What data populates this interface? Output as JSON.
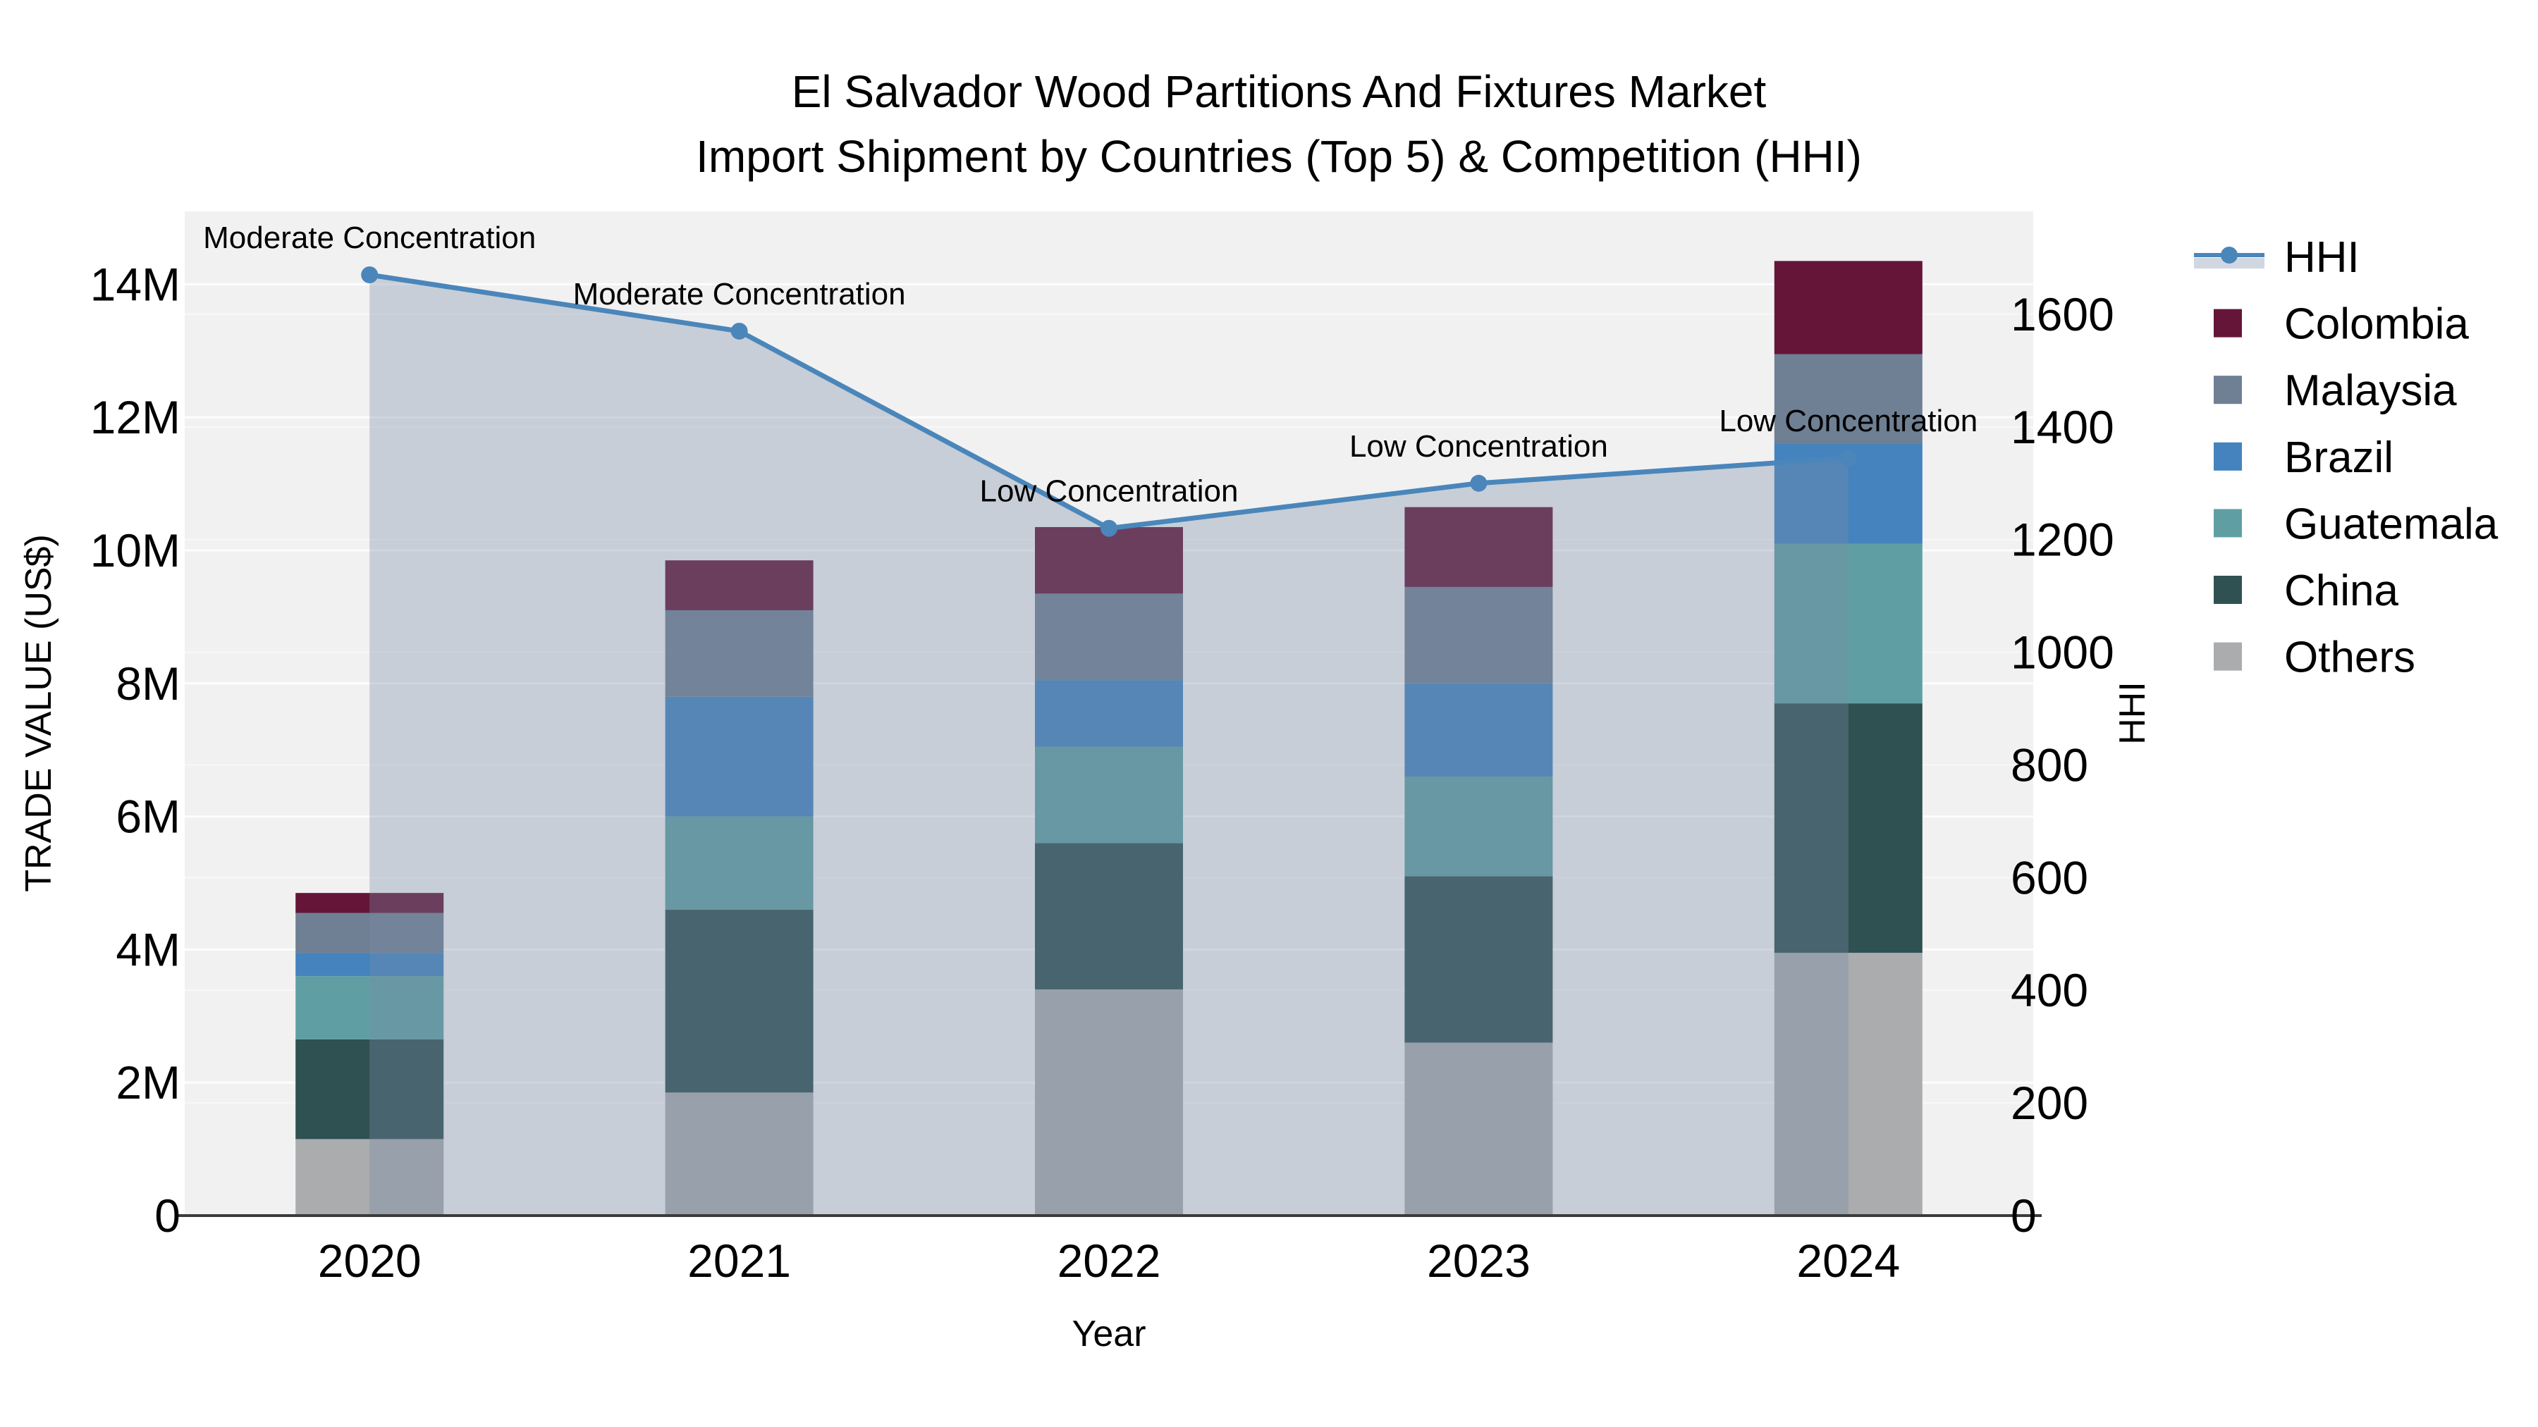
{
  "chart_data": {
    "type": "bar-stacked+line",
    "title_line1": "El Salvador Wood Partitions And Fixtures Market",
    "title_line2": "Import Shipment by Countries (Top 5) & Competition (HHI)",
    "xlabel": "Year",
    "ylabel_left": "TRADE VALUE (US$)",
    "ylabel_right": "HHI",
    "categories": [
      "2020",
      "2021",
      "2022",
      "2023",
      "2024"
    ],
    "value_unit": "US$ millions",
    "series": [
      {
        "name": "Others",
        "color": "#aaacae",
        "values_M": [
          1.15,
          1.85,
          3.4,
          2.6,
          3.95
        ]
      },
      {
        "name": "China",
        "color": "#2f5152",
        "values_M": [
          1.5,
          2.75,
          2.2,
          2.5,
          3.75
        ]
      },
      {
        "name": "Guatemala",
        "color": "#5f9fa3",
        "values_M": [
          0.95,
          1.4,
          1.45,
          1.5,
          2.4
        ]
      },
      {
        "name": "Brazil",
        "color": "#4483bd",
        "values_M": [
          0.35,
          1.8,
          1.0,
          1.4,
          1.5
        ]
      },
      {
        "name": "Malaysia",
        "color": "#6f7f94",
        "values_M": [
          0.6,
          1.3,
          1.3,
          1.45,
          1.35
        ]
      },
      {
        "name": "Colombia",
        "color": "#651538",
        "values_M": [
          0.3,
          0.75,
          1.0,
          1.2,
          1.4
        ]
      }
    ],
    "hhi": {
      "name": "HHI",
      "line_color": "#4a86ba",
      "area_color": "rgba(120,140,165,0.35)",
      "values": [
        1670,
        1570,
        1220,
        1300,
        1345
      ],
      "annotations": [
        "Moderate Concentration",
        "Moderate Concentration",
        "Low Concentration",
        "Low Concentration",
        "Low Concentration"
      ]
    },
    "left_axis": {
      "tick_labels": [
        "0",
        "2M",
        "4M",
        "6M",
        "8M",
        "10M",
        "12M",
        "14M"
      ],
      "tick_values_M": [
        0,
        2,
        4,
        6,
        8,
        10,
        12,
        14
      ],
      "range_M": [
        0,
        15.1
      ]
    },
    "right_axis": {
      "tick_labels": [
        "0",
        "200",
        "400",
        "600",
        "800",
        "1000",
        "1200",
        "1400",
        "1600"
      ],
      "tick_values": [
        0,
        200,
        400,
        600,
        800,
        1000,
        1200,
        1400,
        1600
      ],
      "range": [
        0,
        1785
      ]
    },
    "legend_order": [
      "HHI",
      "Colombia",
      "Malaysia",
      "Brazil",
      "Guatemala",
      "China",
      "Others"
    ],
    "plot_bg_color": "#f1f1f2",
    "grid_color": "#ffffff",
    "baseline_color": "#3b3b3b"
  }
}
